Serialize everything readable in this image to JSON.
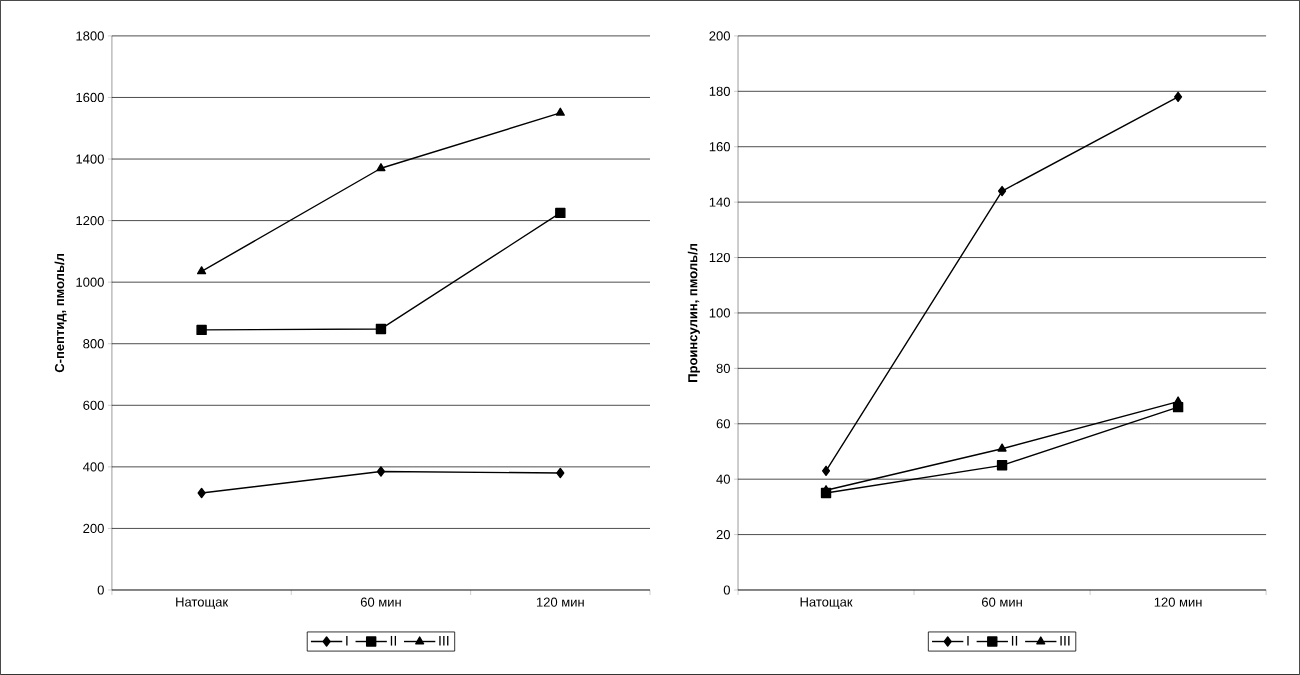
{
  "chart_data": [
    {
      "type": "line",
      "ylabel": "**С-пептид, пмоль/л**",
      "categories": [
        "Натощак",
        "60 мин",
        "120 мин"
      ],
      "series": [
        {
          "name": "I",
          "color": "#000000",
          "marker": "diamond",
          "values": [
            315,
            385,
            380
          ]
        },
        {
          "name": "II",
          "color": "#000000",
          "marker": "square",
          "values": [
            845,
            848,
            1225
          ]
        },
        {
          "name": "III",
          "color": "#000000",
          "marker": "triangle",
          "values": [
            1035,
            1370,
            1550
          ]
        }
      ],
      "ylim": [
        0,
        1800
      ],
      "yticks": [
        0,
        200,
        400,
        600,
        800,
        1000,
        1200,
        1400,
        1600,
        1800
      ],
      "grid": "y",
      "legend": "bottom",
      "line_style": "solid"
    },
    {
      "type": "line",
      "ylabel": "**Проинсулин, пмоль/л**",
      "categories": [
        "Натощак",
        "60 мин",
        "120 мин"
      ],
      "series": [
        {
          "name": "I",
          "color": "#000000",
          "marker": "diamond",
          "values": [
            43,
            144,
            178
          ]
        },
        {
          "name": "II",
          "color": "#000000",
          "marker": "square",
          "values": [
            35,
            45,
            66
          ]
        },
        {
          "name": "III",
          "color": "#000000",
          "marker": "triangle",
          "values": [
            36,
            51,
            68
          ]
        }
      ],
      "ylim": [
        0,
        200
      ],
      "yticks": [
        0,
        20,
        40,
        60,
        80,
        100,
        120,
        140,
        160,
        180,
        200
      ],
      "grid": "y",
      "legend": "bottom",
      "line_style": "solid"
    }
  ]
}
